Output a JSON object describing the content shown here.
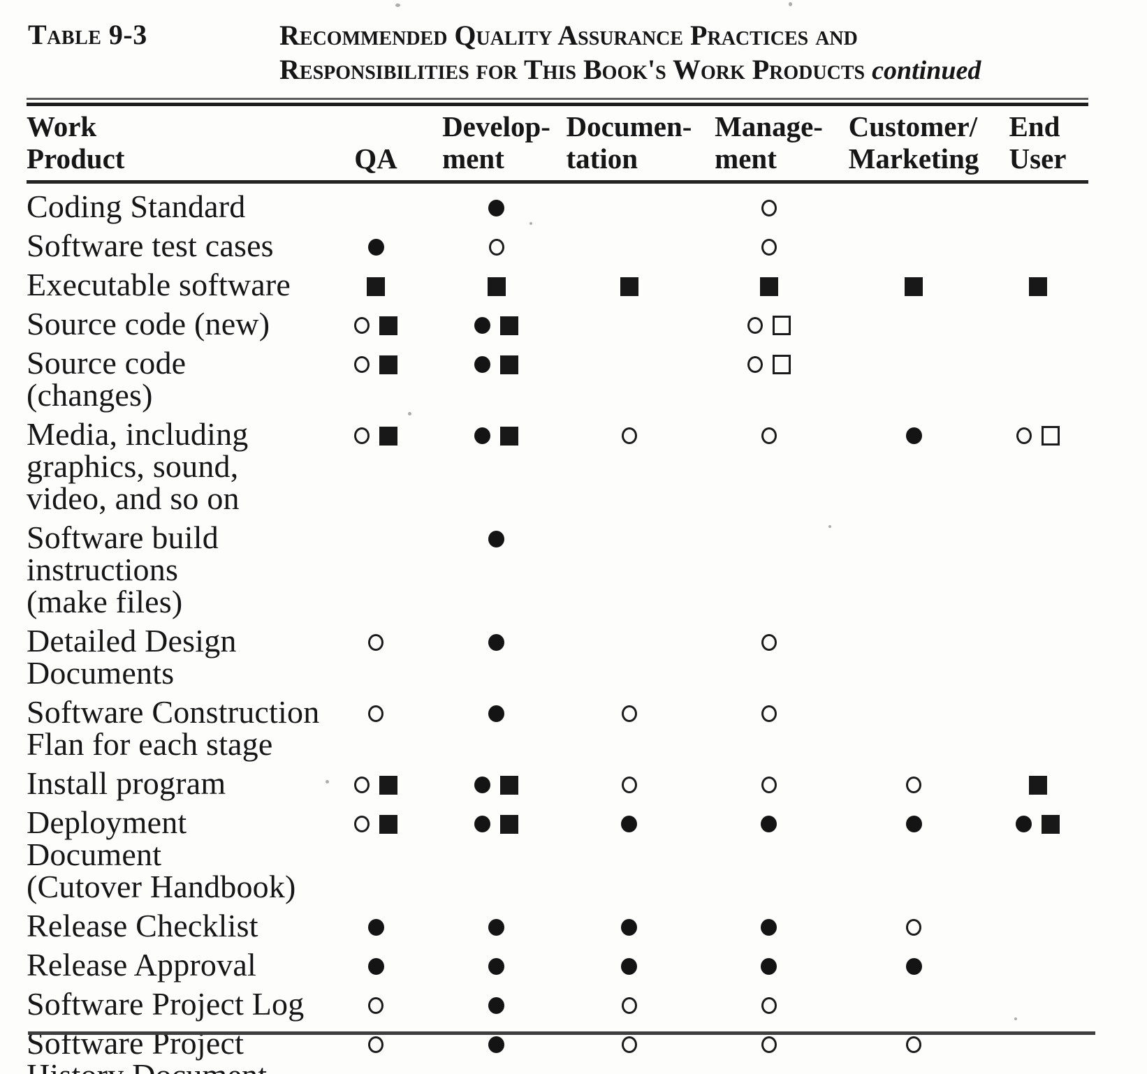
{
  "page": {
    "table_label": "Table 9-3",
    "title": {
      "line1": "Recommended Quality Assurance Practices and",
      "line2": "Responsibilities for This Book's Work Products",
      "continued": "continued"
    }
  },
  "table": {
    "columns": [
      {
        "id": "work-product",
        "lines": [
          "Work",
          "Product"
        ]
      },
      {
        "id": "qa",
        "lines": [
          "QA"
        ]
      },
      {
        "id": "development",
        "lines": [
          "Develop-",
          "ment"
        ]
      },
      {
        "id": "documentation",
        "lines": [
          "Documen-",
          "tation"
        ]
      },
      {
        "id": "management",
        "lines": [
          "Manage-",
          "ment"
        ]
      },
      {
        "id": "customer-marketing",
        "lines": [
          "Customer/",
          "Marketing"
        ]
      },
      {
        "id": "end-user",
        "lines": [
          "End",
          "User"
        ]
      }
    ],
    "symbol_names": {
      "fc": "filled-circle",
      "oc": "open-circle",
      "fs": "filled-square",
      "os": "open-square"
    },
    "rows": [
      {
        "label_lines": [
          "Coding Standard"
        ],
        "cells": [
          [],
          [
            "fc"
          ],
          [],
          [
            "oc"
          ],
          [],
          []
        ]
      },
      {
        "label_lines": [
          "Software test cases"
        ],
        "cells": [
          [
            "fc"
          ],
          [
            "oc"
          ],
          [],
          [
            "oc"
          ],
          [],
          []
        ]
      },
      {
        "label_lines": [
          "Executable software"
        ],
        "cells": [
          [
            "fs"
          ],
          [
            "fs"
          ],
          [
            "fs"
          ],
          [
            "fs"
          ],
          [
            "fs"
          ],
          [
            "fs"
          ]
        ]
      },
      {
        "label_lines": [
          "Source code (new)"
        ],
        "cells": [
          [
            "oc",
            "fs"
          ],
          [
            "fc",
            "fs"
          ],
          [],
          [
            "oc",
            "os"
          ],
          [],
          []
        ]
      },
      {
        "label_lines": [
          "Source code (changes)"
        ],
        "cells": [
          [
            "oc",
            "fs"
          ],
          [
            "fc",
            "fs"
          ],
          [],
          [
            "oc",
            "os"
          ],
          [],
          []
        ]
      },
      {
        "label_lines": [
          "Media, including",
          "graphics, sound,",
          "video, and so on"
        ],
        "cells": [
          [
            "oc",
            "fs"
          ],
          [
            "fc",
            "fs"
          ],
          [
            "oc"
          ],
          [
            "oc"
          ],
          [
            "fc"
          ],
          [
            "oc",
            "os"
          ]
        ]
      },
      {
        "label_lines": [
          "Software build",
          "instructions",
          "(make files)"
        ],
        "cells": [
          [],
          [
            "fc"
          ],
          [],
          [],
          [],
          []
        ]
      },
      {
        "label_lines": [
          "Detailed Design",
          "Documents"
        ],
        "cells": [
          [
            "oc"
          ],
          [
            "fc"
          ],
          [],
          [
            "oc"
          ],
          [],
          []
        ]
      },
      {
        "label_lines": [
          "Software Construction",
          "Flan for each stage"
        ],
        "cells": [
          [
            "oc"
          ],
          [
            "fc"
          ],
          [
            "oc"
          ],
          [
            "oc"
          ],
          [],
          []
        ]
      },
      {
        "label_lines": [
          "Install program"
        ],
        "cells": [
          [
            "oc",
            "fs"
          ],
          [
            "fc",
            "fs"
          ],
          [
            "oc"
          ],
          [
            "oc"
          ],
          [
            "oc"
          ],
          [
            "fs"
          ]
        ]
      },
      {
        "label_lines": [
          "Deployment Document",
          "(Cutover Handbook)"
        ],
        "cells": [
          [
            "oc",
            "fs"
          ],
          [
            "fc",
            "fs"
          ],
          [
            "fc"
          ],
          [
            "fc"
          ],
          [
            "fc"
          ],
          [
            "fc",
            "fs"
          ]
        ]
      },
      {
        "label_lines": [
          "Release Checklist"
        ],
        "cells": [
          [
            "fc"
          ],
          [
            "fc"
          ],
          [
            "fc"
          ],
          [
            "fc"
          ],
          [
            "oc"
          ],
          []
        ]
      },
      {
        "label_lines": [
          "Release Approval"
        ],
        "cells": [
          [
            "fc"
          ],
          [
            "fc"
          ],
          [
            "fc"
          ],
          [
            "fc"
          ],
          [
            "fc"
          ],
          []
        ]
      },
      {
        "label_lines": [
          "Software Project Log"
        ],
        "cells": [
          [
            "oc"
          ],
          [
            "fc"
          ],
          [
            "oc"
          ],
          [
            "oc"
          ],
          [],
          []
        ]
      },
      {
        "label_lines": [
          "Software Project",
          "History Document"
        ],
        "cells": [
          [
            "oc"
          ],
          [
            "fc"
          ],
          [
            "oc"
          ],
          [
            "oc"
          ],
          [
            "oc"
          ],
          []
        ]
      }
    ]
  },
  "colors": {
    "ink": "#161616",
    "paper": "#fdfdfc"
  }
}
